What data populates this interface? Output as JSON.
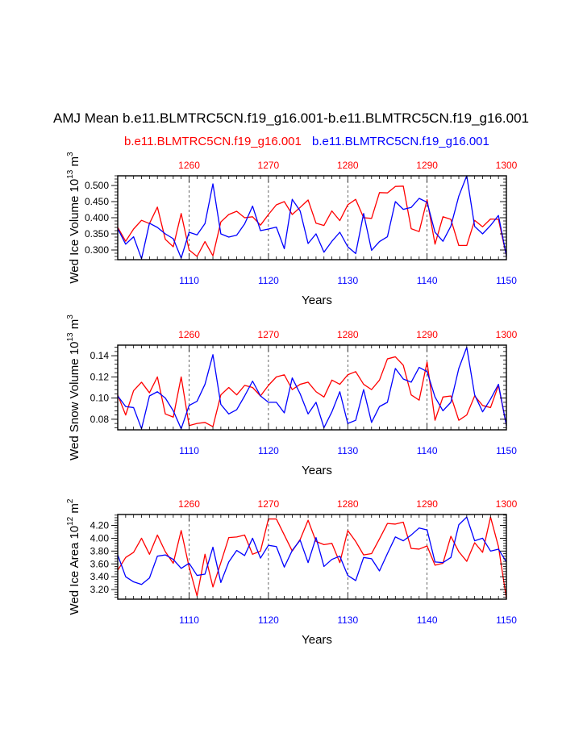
{
  "title": "AMJ Mean b.e11.BLMTRC5CN.f19_g16.001-b.e11.BLMTRC5CN.f19_g16.001",
  "legend": {
    "red_label": "b.e11.BLMTRC5CN.f19_g16.001",
    "blue_label": "b.e11.BLMTRC5CN.f19_g16.001"
  },
  "colors": {
    "red": "#ff0000",
    "blue": "#0000ff",
    "axis": "#000000"
  },
  "chart_data": [
    {
      "type": "line",
      "ylabel_main": "Wed Ice Volume 10",
      "ylabel_exp": "13",
      "ylabel_unit": " m",
      "ylabel_unit_exp": "3",
      "xlabel": "Years",
      "bottom_axis": {
        "range": [
          1101,
          1150
        ],
        "ticks": [
          1110,
          1120,
          1130,
          1140,
          1150
        ],
        "tick_labels": [
          "1110",
          "1120",
          "1130",
          "1140",
          "1150"
        ]
      },
      "top_axis": {
        "range": [
          1251,
          1300
        ],
        "ticks": [
          1260,
          1270,
          1280,
          1290,
          1300
        ],
        "tick_labels": [
          "1260",
          "1270",
          "1280",
          "1290",
          "1300"
        ]
      },
      "ylim": [
        0.27,
        0.53
      ],
      "yticks": [
        0.3,
        0.35,
        0.4,
        0.45,
        0.5
      ],
      "ytick_labels": [
        "0.300",
        "0.350",
        "0.400",
        "0.450",
        "0.500"
      ],
      "series": [
        {
          "name": "b.e11.BLMTRC5CN.f19_g16.001 (red, top axis)",
          "color": "red",
          "x_start": 1251,
          "values": [
            0.37,
            0.327,
            0.365,
            0.392,
            0.382,
            0.433,
            0.333,
            0.31,
            0.413,
            0.3,
            0.28,
            0.326,
            0.282,
            0.387,
            0.41,
            0.42,
            0.4,
            0.403,
            0.377,
            0.41,
            0.44,
            0.45,
            0.41,
            0.432,
            0.455,
            0.383,
            0.376,
            0.421,
            0.391,
            0.44,
            0.457,
            0.4,
            0.398,
            0.478,
            0.477,
            0.497,
            0.498,
            0.366,
            0.357,
            0.456,
            0.318,
            0.403,
            0.395,
            0.314,
            0.314,
            0.392,
            0.372,
            0.396,
            0.395,
            0.282
          ]
        },
        {
          "name": "b.e11.BLMTRC5CN.f19_g16.001 (blue, bottom axis)",
          "color": "blue",
          "x_start": 1101,
          "values": [
            0.366,
            0.318,
            0.341,
            0.273,
            0.383,
            0.37,
            0.35,
            0.335,
            0.275,
            0.355,
            0.347,
            0.382,
            0.505,
            0.35,
            0.34,
            0.346,
            0.381,
            0.436,
            0.36,
            0.365,
            0.371,
            0.304,
            0.457,
            0.421,
            0.32,
            0.35,
            0.293,
            0.327,
            0.355,
            0.31,
            0.289,
            0.413,
            0.299,
            0.326,
            0.341,
            0.45,
            0.426,
            0.432,
            0.46,
            0.448,
            0.355,
            0.327,
            0.374,
            0.467,
            0.53,
            0.373,
            0.35,
            0.376,
            0.407,
            0.282
          ]
        }
      ]
    },
    {
      "type": "line",
      "ylabel_main": "Wed Snow Volume 10",
      "ylabel_exp": "13",
      "ylabel_unit": " m",
      "ylabel_unit_exp": "3",
      "xlabel": "Years",
      "bottom_axis": {
        "range": [
          1101,
          1150
        ],
        "ticks": [
          1110,
          1120,
          1130,
          1140,
          1150
        ],
        "tick_labels": [
          "1110",
          "1120",
          "1130",
          "1140",
          "1150"
        ]
      },
      "top_axis": {
        "range": [
          1251,
          1300
        ],
        "ticks": [
          1260,
          1270,
          1280,
          1290,
          1300
        ],
        "tick_labels": [
          "1260",
          "1270",
          "1280",
          "1290",
          "1300"
        ]
      },
      "ylim": [
        0.07,
        0.15
      ],
      "yticks": [
        0.08,
        0.1,
        0.12,
        0.14
      ],
      "ytick_labels": [
        "0.08",
        "0.10",
        "0.12",
        "0.14"
      ],
      "series": [
        {
          "name": "b.e11.BLMTRC5CN.f19_g16.001 (red, top axis)",
          "color": "red",
          "x_start": 1251,
          "values": [
            0.103,
            0.084,
            0.107,
            0.115,
            0.105,
            0.12,
            0.085,
            0.082,
            0.12,
            0.074,
            0.076,
            0.077,
            0.073,
            0.103,
            0.11,
            0.103,
            0.112,
            0.11,
            0.102,
            0.112,
            0.12,
            0.122,
            0.108,
            0.113,
            0.115,
            0.106,
            0.101,
            0.117,
            0.113,
            0.122,
            0.125,
            0.113,
            0.108,
            0.117,
            0.137,
            0.139,
            0.131,
            0.103,
            0.098,
            0.134,
            0.079,
            0.101,
            0.102,
            0.079,
            0.084,
            0.102,
            0.093,
            0.091,
            0.112,
            0.074
          ]
        },
        {
          "name": "b.e11.BLMTRC5CN.f19_g16.001 (blue, bottom axis)",
          "color": "blue",
          "x_start": 1101,
          "values": [
            0.102,
            0.092,
            0.091,
            0.071,
            0.102,
            0.106,
            0.1,
            0.088,
            0.071,
            0.093,
            0.097,
            0.113,
            0.141,
            0.094,
            0.085,
            0.089,
            0.102,
            0.116,
            0.102,
            0.096,
            0.096,
            0.086,
            0.119,
            0.104,
            0.085,
            0.096,
            0.072,
            0.087,
            0.106,
            0.076,
            0.079,
            0.108,
            0.077,
            0.092,
            0.096,
            0.128,
            0.118,
            0.115,
            0.129,
            0.125,
            0.101,
            0.088,
            0.096,
            0.128,
            0.148,
            0.103,
            0.087,
            0.099,
            0.113,
            0.074
          ]
        }
      ]
    },
    {
      "type": "line",
      "ylabel_main": "Wed Ice Area 10",
      "ylabel_exp": "12",
      "ylabel_unit": " m",
      "ylabel_unit_exp": "2",
      "xlabel": "Years",
      "bottom_axis": {
        "range": [
          1101,
          1150
        ],
        "ticks": [
          1110,
          1120,
          1130,
          1140,
          1150
        ],
        "tick_labels": [
          "1110",
          "1120",
          "1130",
          "1140",
          "1150"
        ]
      },
      "top_axis": {
        "range": [
          1251,
          1300
        ],
        "ticks": [
          1260,
          1270,
          1280,
          1290,
          1300
        ],
        "tick_labels": [
          "1260",
          "1270",
          "1280",
          "1290",
          "1300"
        ]
      },
      "ylim": [
        3.05,
        4.37
      ],
      "yticks": [
        3.2,
        3.4,
        3.6,
        3.8,
        4.0,
        4.2
      ],
      "ytick_labels": [
        "3.20",
        "3.40",
        "3.60",
        "3.80",
        "4.00",
        "4.20"
      ],
      "series": [
        {
          "name": "b.e11.BLMTRC5CN.f19_g16.001 (red, top axis)",
          "color": "red",
          "x_start": 1251,
          "values": [
            3.5,
            3.7,
            3.78,
            4.0,
            3.75,
            4.05,
            3.79,
            3.61,
            4.12,
            3.55,
            3.1,
            3.75,
            3.24,
            3.62,
            4.01,
            4.02,
            4.05,
            3.75,
            3.8,
            4.3,
            4.3,
            4.05,
            3.8,
            3.98,
            4.28,
            3.95,
            3.9,
            3.92,
            3.62,
            4.12,
            3.95,
            3.74,
            3.76,
            3.99,
            4.23,
            4.22,
            4.25,
            3.84,
            3.83,
            3.88,
            3.58,
            3.61,
            4.03,
            3.79,
            3.64,
            3.93,
            3.78,
            4.33,
            3.87,
            3.06
          ]
        },
        {
          "name": "b.e11.BLMTRC5CN.f19_g16.001 (blue, bottom axis)",
          "color": "blue",
          "x_start": 1101,
          "values": [
            3.74,
            3.4,
            3.32,
            3.28,
            3.38,
            3.72,
            3.74,
            3.67,
            3.53,
            3.61,
            3.42,
            3.44,
            3.86,
            3.31,
            3.63,
            3.81,
            3.73,
            4.0,
            3.69,
            3.89,
            3.87,
            3.55,
            3.81,
            3.97,
            3.62,
            4.01,
            3.56,
            3.67,
            3.72,
            3.42,
            3.34,
            3.7,
            3.68,
            3.49,
            3.76,
            4.02,
            3.96,
            4.05,
            4.16,
            4.13,
            3.63,
            3.62,
            3.7,
            4.21,
            4.33,
            3.96,
            4.0,
            3.8,
            3.83,
            3.63
          ]
        }
      ]
    }
  ]
}
